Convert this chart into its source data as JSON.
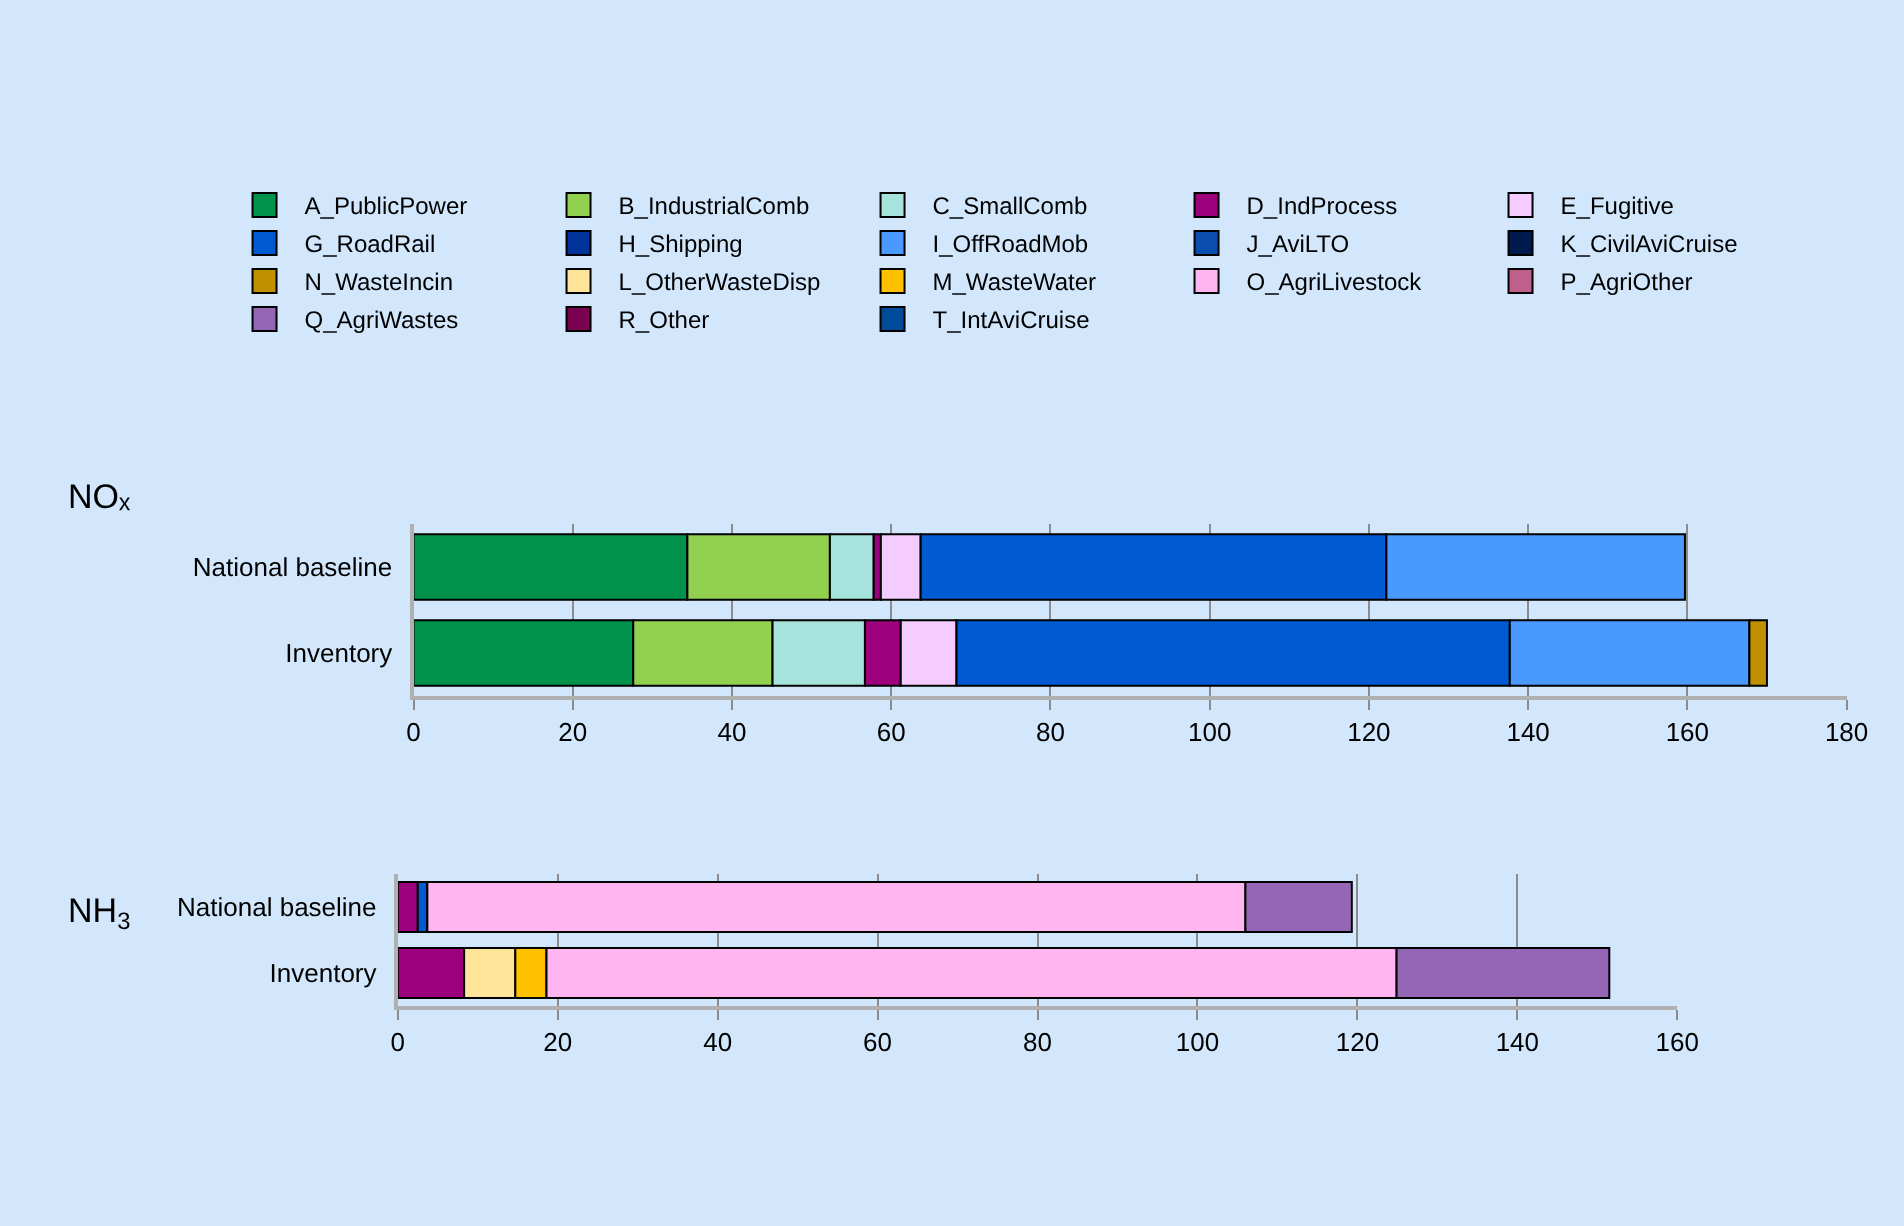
{
  "chart_data": [
    {
      "type": "bar",
      "orientation": "horizontal",
      "stacked": true,
      "ylabel": "NOₓ",
      "categories": [
        "National baseline",
        "Inventory"
      ],
      "xlim": [
        0,
        180
      ],
      "xticks": [
        0,
        20,
        40,
        60,
        80,
        100,
        120,
        140,
        160,
        180
      ],
      "grid": "x",
      "legend": "top",
      "series": [
        {
          "name": "A_PublicPower",
          "color": "#00924a",
          "values": [
            34.4,
            27.6
          ]
        },
        {
          "name": "B_IndustrialComb",
          "color": "#92d050",
          "values": [
            17.9,
            17.5
          ]
        },
        {
          "name": "C_SmallComb",
          "color": "#a6e3dc",
          "values": [
            5.5,
            11.6
          ]
        },
        {
          "name": "D_IndProcess",
          "color": "#9c007c",
          "values": [
            0.9,
            4.5
          ]
        },
        {
          "name": "E_Fugitive",
          "color": "#f5ccff",
          "values": [
            5.0,
            7.0
          ]
        },
        {
          "name": "G_RoadRail",
          "color": "#005ad2",
          "values": [
            58.5,
            69.5
          ]
        },
        {
          "name": "H_Shipping",
          "color": "#003399",
          "values": [
            null,
            null
          ]
        },
        {
          "name": "I_OffRoadMob",
          "color": "#4a99ff",
          "values": [
            37.5,
            30.1
          ]
        },
        {
          "name": "J_AviLTO",
          "color": "#0a4fb0",
          "values": [
            null,
            null
          ]
        },
        {
          "name": "K_CivilAviCruise",
          "color": "#001a4d",
          "values": [
            null,
            null
          ]
        },
        {
          "name": "N_WasteIncin",
          "color": "#bf9000",
          "values": [
            null,
            2.2
          ]
        }
      ]
    },
    {
      "type": "bar",
      "orientation": "horizontal",
      "stacked": true,
      "ylabel": "NH$_{3}$",
      "categories": [
        "National baseline",
        "Inventory"
      ],
      "xlim": [
        0,
        160
      ],
      "xticks": [
        0,
        20,
        40,
        60,
        80,
        100,
        120,
        140,
        160
      ],
      "grid": "x",
      "legend": "top",
      "series": [
        {
          "name": "D_IndProcess",
          "color": "#9c007c",
          "values": [
            2.5,
            8.3
          ]
        },
        {
          "name": "G_RoadRail",
          "color": "#005ad2",
          "values": [
            1.2,
            null
          ]
        },
        {
          "name": "L_OtherWasteDisp",
          "color": "#ffe599",
          "values": [
            null,
            6.4
          ]
        },
        {
          "name": "M_WasteWater",
          "color": "#ffc000",
          "values": [
            null,
            3.9
          ]
        },
        {
          "name": "O_AgriLivestock",
          "color": "#ffb6f0",
          "values": [
            102.3,
            106.3
          ]
        },
        {
          "name": "P_AgriOther",
          "color": "#c0608a",
          "values": [
            null,
            null
          ]
        },
        {
          "name": "Q_AgriWastes",
          "color": "#9566b5",
          "values": [
            13.3,
            26.6
          ]
        },
        {
          "name": "R_Other",
          "color": "#7a0050",
          "values": [
            null,
            null
          ]
        },
        {
          "name": "T_IntAviCruise",
          "color": "#004a9a",
          "values": [
            null,
            null
          ]
        }
      ]
    }
  ]
}
